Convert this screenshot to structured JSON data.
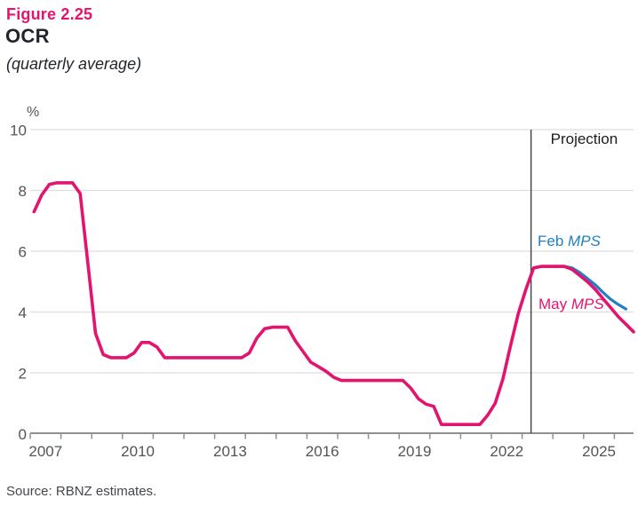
{
  "page": {
    "figure_label": "Figure 2.25",
    "title": "OCR",
    "subtitle": "(quarterly average)",
    "source": "Source: RBNZ estimates."
  },
  "colors": {
    "accent_pink": "#e3146e",
    "accent_blue": "#2180c4",
    "grid": "#dedede",
    "axis": "#8f9193",
    "tick_label": "#515557",
    "projection_line": "#404040",
    "projection_text": "#1c1c1c",
    "heading_text": "#23252d",
    "source_text": "#43474c"
  },
  "chart_data": {
    "type": "line",
    "title": "OCR",
    "subtitle": "(quarterly average)",
    "ylabel": "%",
    "ylim": [
      0,
      10
    ],
    "yticks": [
      0,
      2,
      4,
      6,
      8,
      10
    ],
    "grid": "horizontal",
    "x_year_ticks": [
      2007,
      2008,
      2009,
      2010,
      2011,
      2012,
      2013,
      2014,
      2015,
      2016,
      2017,
      2018,
      2019,
      2020,
      2021,
      2022,
      2023,
      2024,
      2025,
      2026
    ],
    "x_year_labels": [
      2007,
      2010,
      2013,
      2016,
      2019,
      2022,
      2025
    ],
    "projection": {
      "start_x": 2023.29,
      "label": "Projection"
    },
    "legend_position": "annotated-on-lines",
    "series": [
      {
        "name": "Feb MPS",
        "label": {
          "regular": "Feb ",
          "italic": "MPS"
        },
        "color_key": "accent_blue",
        "points": [
          [
            2023.125,
            4.75
          ],
          [
            2023.375,
            5.45
          ],
          [
            2023.625,
            5.5
          ],
          [
            2023.875,
            5.5
          ],
          [
            2024.125,
            5.5
          ],
          [
            2024.375,
            5.5
          ],
          [
            2024.625,
            5.45
          ],
          [
            2024.875,
            5.3
          ],
          [
            2025.125,
            5.1
          ],
          [
            2025.375,
            4.9
          ],
          [
            2025.625,
            4.65
          ],
          [
            2025.875,
            4.42
          ],
          [
            2026.125,
            4.25
          ],
          [
            2026.375,
            4.1
          ]
        ]
      },
      {
        "name": "May MPS",
        "label": {
          "regular": "May ",
          "italic": "MPS"
        },
        "color_key": "accent_pink",
        "points": [
          [
            2007.125,
            7.3
          ],
          [
            2007.375,
            7.85
          ],
          [
            2007.625,
            8.2
          ],
          [
            2007.875,
            8.25
          ],
          [
            2008.125,
            8.25
          ],
          [
            2008.375,
            8.25
          ],
          [
            2008.625,
            7.9
          ],
          [
            2008.875,
            5.6
          ],
          [
            2009.125,
            3.3
          ],
          [
            2009.375,
            2.6
          ],
          [
            2009.625,
            2.5
          ],
          [
            2009.875,
            2.5
          ],
          [
            2010.125,
            2.5
          ],
          [
            2010.375,
            2.65
          ],
          [
            2010.625,
            3.0
          ],
          [
            2010.875,
            3.0
          ],
          [
            2011.125,
            2.85
          ],
          [
            2011.375,
            2.5
          ],
          [
            2011.625,
            2.5
          ],
          [
            2011.875,
            2.5
          ],
          [
            2012.125,
            2.5
          ],
          [
            2012.375,
            2.5
          ],
          [
            2012.625,
            2.5
          ],
          [
            2012.875,
            2.5
          ],
          [
            2013.125,
            2.5
          ],
          [
            2013.375,
            2.5
          ],
          [
            2013.625,
            2.5
          ],
          [
            2013.875,
            2.5
          ],
          [
            2014.125,
            2.65
          ],
          [
            2014.375,
            3.15
          ],
          [
            2014.625,
            3.45
          ],
          [
            2014.875,
            3.5
          ],
          [
            2015.125,
            3.5
          ],
          [
            2015.375,
            3.5
          ],
          [
            2015.625,
            3.05
          ],
          [
            2015.875,
            2.7
          ],
          [
            2016.125,
            2.35
          ],
          [
            2016.375,
            2.2
          ],
          [
            2016.625,
            2.05
          ],
          [
            2016.875,
            1.85
          ],
          [
            2017.125,
            1.75
          ],
          [
            2017.375,
            1.75
          ],
          [
            2017.625,
            1.75
          ],
          [
            2017.875,
            1.75
          ],
          [
            2018.125,
            1.75
          ],
          [
            2018.375,
            1.75
          ],
          [
            2018.625,
            1.75
          ],
          [
            2018.875,
            1.75
          ],
          [
            2019.125,
            1.75
          ],
          [
            2019.375,
            1.5
          ],
          [
            2019.625,
            1.15
          ],
          [
            2019.875,
            0.97
          ],
          [
            2020.125,
            0.9
          ],
          [
            2020.375,
            0.3
          ],
          [
            2020.625,
            0.3
          ],
          [
            2020.875,
            0.3
          ],
          [
            2021.125,
            0.3
          ],
          [
            2021.375,
            0.3
          ],
          [
            2021.625,
            0.3
          ],
          [
            2021.875,
            0.6
          ],
          [
            2022.125,
            1.0
          ],
          [
            2022.375,
            1.8
          ],
          [
            2022.625,
            2.9
          ],
          [
            2022.875,
            3.95
          ],
          [
            2023.125,
            4.75
          ],
          [
            2023.375,
            5.45
          ],
          [
            2023.625,
            5.5
          ],
          [
            2023.875,
            5.5
          ],
          [
            2024.125,
            5.5
          ],
          [
            2024.375,
            5.5
          ],
          [
            2024.625,
            5.4
          ],
          [
            2024.875,
            5.2
          ],
          [
            2025.125,
            5.0
          ],
          [
            2025.375,
            4.75
          ],
          [
            2025.625,
            4.45
          ],
          [
            2025.875,
            4.15
          ],
          [
            2026.125,
            3.85
          ],
          [
            2026.375,
            3.6
          ],
          [
            2026.625,
            3.35
          ]
        ]
      }
    ]
  }
}
